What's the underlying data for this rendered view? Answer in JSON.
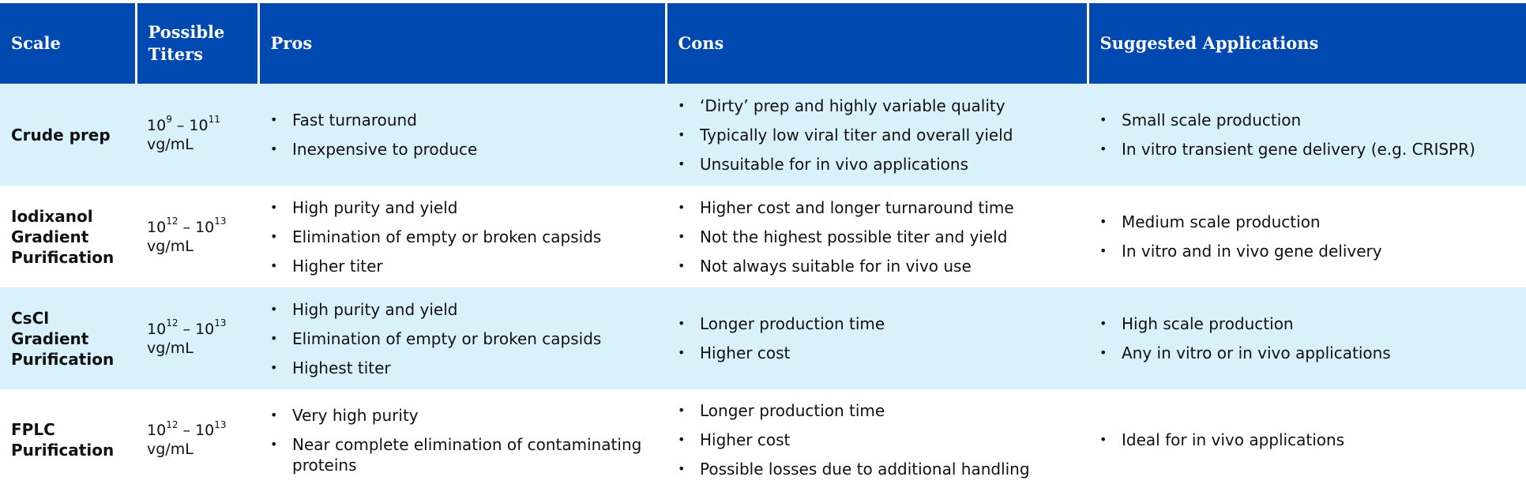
{
  "table": {
    "headers": [
      "Scale",
      "Possible Titers",
      "Pros",
      "Cons",
      "Suggested Applications"
    ],
    "rows": [
      {
        "scale": "Crude prep",
        "titer": {
          "low_base": "10",
          "low_exp": "9",
          "sep": " – ",
          "high_base": "10",
          "high_exp": "11",
          "unit": "vg/mL"
        },
        "pros": [
          "Fast turnaround",
          "Inexpensive to produce"
        ],
        "cons": [
          "‘Dirty’ prep and highly variable quality",
          "Typically low viral titer and overall yield",
          "Unsuitable for in vivo applications"
        ],
        "apps": [
          "Small scale production",
          "In vitro transient gene delivery (e.g. CRISPR)"
        ]
      },
      {
        "scale": "Iodixanol Gradient Purification",
        "titer": {
          "low_base": "10",
          "low_exp": "12",
          "sep": " – ",
          "high_base": "10",
          "high_exp": "13",
          "unit": "vg/mL"
        },
        "pros": [
          "High purity and yield",
          "Elimination of empty or broken capsids",
          "Higher titer"
        ],
        "cons": [
          "Higher cost and longer turnaround time",
          "Not the highest possible titer and yield",
          "Not always suitable for in vivo use"
        ],
        "apps": [
          "Medium scale production",
          "In vitro and in vivo gene delivery"
        ]
      },
      {
        "scale": "CsCl Gradient Purification",
        "titer": {
          "low_base": "10",
          "low_exp": "12",
          "sep": " – ",
          "high_base": "10",
          "high_exp": "13",
          "unit": "vg/mL"
        },
        "pros": [
          "High purity and yield",
          "Elimination of empty or broken capsids",
          "Highest titer"
        ],
        "cons": [
          "Longer production time",
          "Higher cost"
        ],
        "apps": [
          "High scale production",
          "Any in vitro or in vivo applications"
        ]
      },
      {
        "scale": "FPLC Purification",
        "titer": {
          "low_base": "10",
          "low_exp": "12",
          "sep": " – ",
          "high_base": "10",
          "high_exp": "13",
          "unit": "vg/mL"
        },
        "pros": [
          "Very high purity",
          "Near complete elimination of contaminating proteins"
        ],
        "cons": [
          "Longer production time",
          "Higher cost",
          "Possible losses due to additional handling"
        ],
        "apps": [
          "Ideal for in vivo applications"
        ]
      }
    ]
  },
  "colors": {
    "header_bg": "#0049b0",
    "header_text": "#ffffff",
    "band_light": "#d8f1fb",
    "band_white": "#ffffff"
  }
}
